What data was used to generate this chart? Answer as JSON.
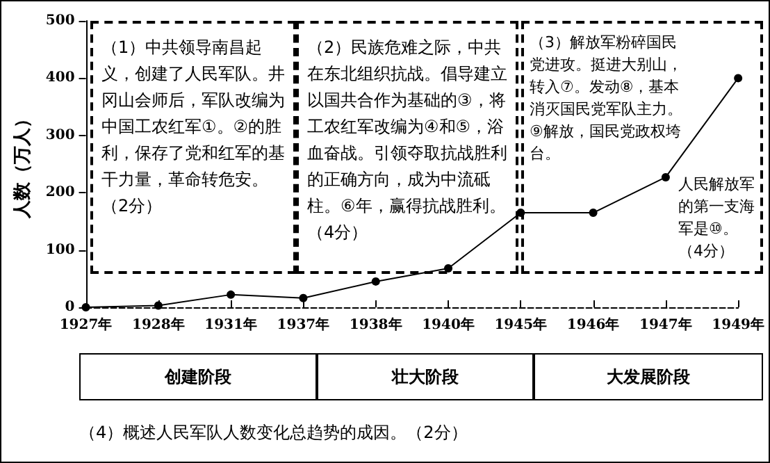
{
  "chart_data": {
    "type": "line",
    "ylabel": "人数（万人）",
    "categories": [
      "1927年",
      "1928年",
      "1931年",
      "1937年",
      "1938年",
      "1940年",
      "1945年",
      "1946年",
      "1947年",
      "1949年"
    ],
    "series": [
      {
        "color": "#000000",
        "values": [
          0,
          3,
          22,
          16,
          45,
          68,
          165,
          165,
          227,
          400
        ]
      }
    ],
    "ylim": [
      0,
      500
    ],
    "yticks": [
      0,
      100,
      200,
      300,
      400,
      500
    ],
    "grid": false,
    "marker": "circle",
    "line_style": "solid",
    "annotations": [
      "（1）中共领导南昌起义，创建了人民军队。井冈山会师后，军队改编为中国工农红军①。②的胜利，保存了党和红军的基干力量，革命转危安。（2分）",
      "（2）民族危难之际，中共在东北组织抗战。倡导建立以国共合作为基础的③，将工农红军改编为④和⑤，浴血奋战。引领夺取抗战胜利的正确方向，成为中流砥柱。⑥年，赢得抗战胜利。（4分）",
      "（3）解放军粉碎国民党进攻。挺进大别山，转入⑦。发动⑧，基本消灭国民党军队主力。⑨解放，国民党政权垮台。",
      "人民解放军的第一支海军是⑩。（4分）",
      "创建阶段",
      "壮大阶段",
      "大发展阶段",
      "（4）概述人民军队人数变化总趋势的成因。（2分）"
    ]
  }
}
